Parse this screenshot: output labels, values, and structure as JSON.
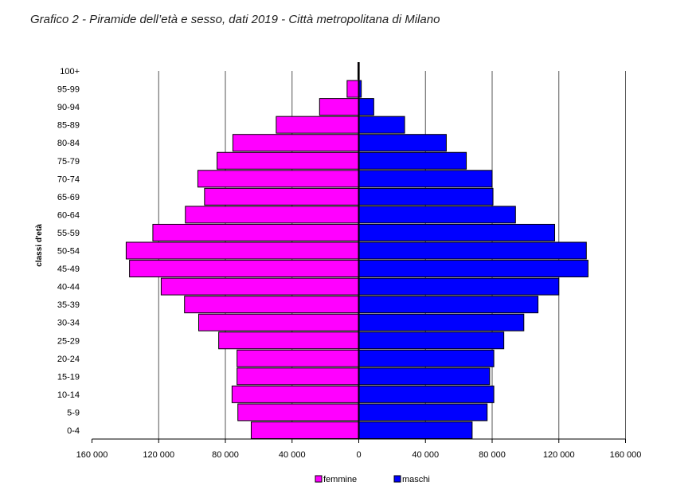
{
  "title": "Grafico 2 - Piramide dell’età e sesso, dati 2019 - Città metropolitana di Milano",
  "chart_data": {
    "type": "bar",
    "orientation": "horizontal",
    "layout": "population-pyramid",
    "categories": [
      "0-4",
      "5-9",
      "10-14",
      "15-19",
      "20-24",
      "25-29",
      "30-34",
      "35-39",
      "40-44",
      "45-49",
      "50-54",
      "55-59",
      "60-64",
      "65-69",
      "70-74",
      "75-79",
      "80-84",
      "85-89",
      "90-94",
      "95-99",
      "100+"
    ],
    "series": [
      {
        "name": "femmine",
        "color": "#ff00ff",
        "side": "left",
        "values": [
          64500,
          72500,
          76000,
          73000,
          73000,
          84000,
          96000,
          104500,
          118500,
          137500,
          139500,
          123500,
          104000,
          92500,
          96500,
          85000,
          75500,
          49500,
          23500,
          7000,
          500
        ]
      },
      {
        "name": "maschi",
        "color": "#0000ff",
        "side": "right",
        "values": [
          68000,
          77000,
          81000,
          78500,
          81000,
          87000,
          99000,
          107500,
          120000,
          137500,
          136500,
          117500,
          94000,
          80500,
          80000,
          64500,
          52500,
          27500,
          9000,
          1500,
          300
        ]
      }
    ],
    "xlim": [
      -160000,
      160000
    ],
    "x_ticks": [
      "160 000",
      "120 000",
      "80 000",
      "40 000",
      "0",
      "40 000",
      "80 000",
      "120 000",
      "160 000"
    ],
    "ylabel": "classi d'età",
    "xlabel": "",
    "grid": "vertical",
    "legend_position": "bottom-center"
  }
}
